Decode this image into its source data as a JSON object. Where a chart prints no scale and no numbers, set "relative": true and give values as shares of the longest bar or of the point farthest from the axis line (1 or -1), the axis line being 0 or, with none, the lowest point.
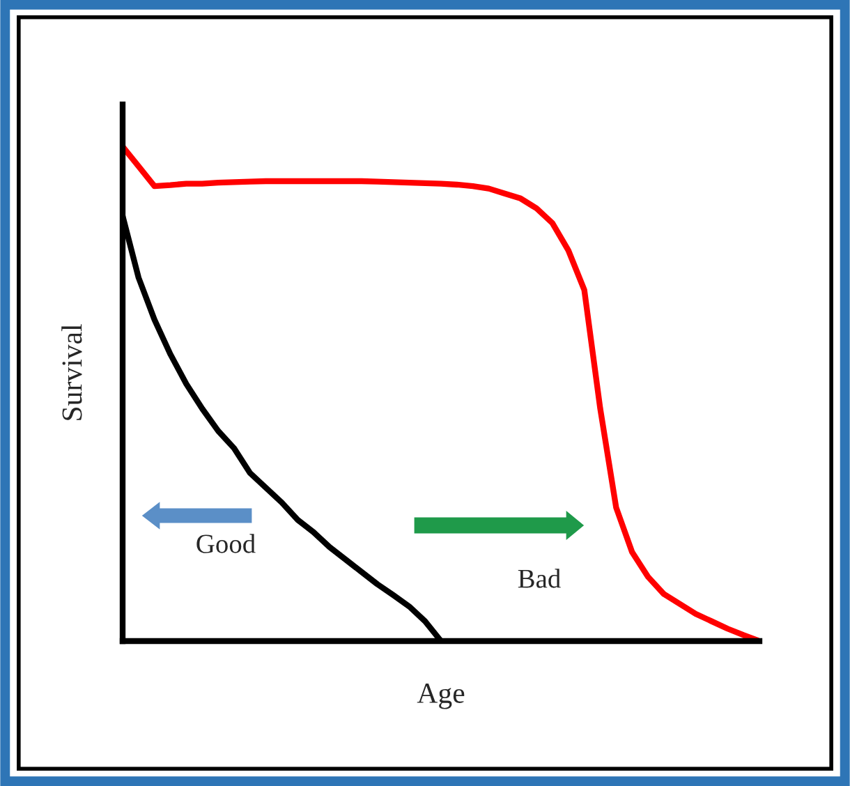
{
  "chart_data": {
    "type": "line",
    "relative": true,
    "xlabel": "Age",
    "ylabel": "Survival",
    "annotations": [
      "Good",
      "Bad"
    ],
    "categories": [
      null,
      null,
      null,
      null,
      null,
      null,
      null,
      null,
      null,
      null,
      null,
      null,
      null,
      null,
      null,
      null,
      null,
      null,
      null,
      null,
      null,
      null,
      null,
      null,
      null,
      null,
      null,
      null,
      null,
      null,
      null,
      null,
      null,
      null,
      null,
      null,
      null,
      null,
      null,
      null,
      null
    ],
    "series": [
      {
        "color": "#ff0000",
        "values": [
          1.0,
          0.96,
          0.92,
          0.922,
          0.925,
          0.925,
          0.927,
          0.928,
          0.929,
          0.93,
          0.93,
          0.93,
          0.93,
          0.93,
          0.93,
          0.93,
          0.929,
          0.928,
          0.927,
          0.926,
          0.925,
          0.923,
          0.92,
          0.915,
          0.905,
          0.895,
          0.875,
          0.845,
          0.79,
          0.71,
          0.47,
          0.27,
          0.18,
          0.13,
          0.095,
          0.075,
          0.055,
          0.04,
          0.025,
          0.012,
          0.0
        ]
      },
      {
        "color": "#000000",
        "values": [
          0.86,
          0.735,
          0.65,
          0.58,
          0.52,
          0.47,
          0.425,
          0.39,
          0.34,
          0.31,
          0.28,
          0.245,
          0.22,
          0.19,
          0.165,
          0.14,
          0.115,
          0.093,
          0.07,
          0.04,
          0.0,
          null,
          null,
          null,
          null,
          null,
          null,
          null,
          null,
          null,
          null,
          null,
          null,
          null,
          null,
          null,
          null,
          null,
          null,
          null,
          null
        ]
      }
    ]
  }
}
